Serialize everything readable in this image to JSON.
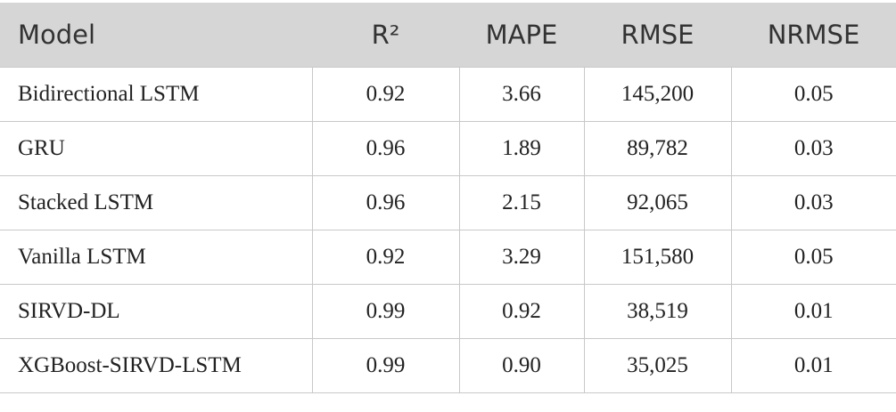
{
  "table": {
    "header": [
      "Model",
      "R²",
      "MAPE",
      "RMSE",
      "NRMSE"
    ],
    "rows": [
      [
        "Bidirectional LSTM",
        "0.92",
        "3.66",
        "145,200",
        "0.05"
      ],
      [
        "GRU",
        "0.96",
        "1.89",
        "89,782",
        "0.03"
      ],
      [
        "Stacked LSTM",
        "0.96",
        "2.15",
        "92,065",
        "0.03"
      ],
      [
        "Vanilla LSTM",
        "0.92",
        "3.29",
        "151,580",
        "0.05"
      ],
      [
        "SIRVD-DL",
        "0.99",
        "0.92",
        "38,519",
        "0.01"
      ],
      [
        "XGBoost-SIRVD-LSTM",
        "0.99",
        "0.90",
        "35,025",
        "0.01"
      ]
    ]
  }
}
